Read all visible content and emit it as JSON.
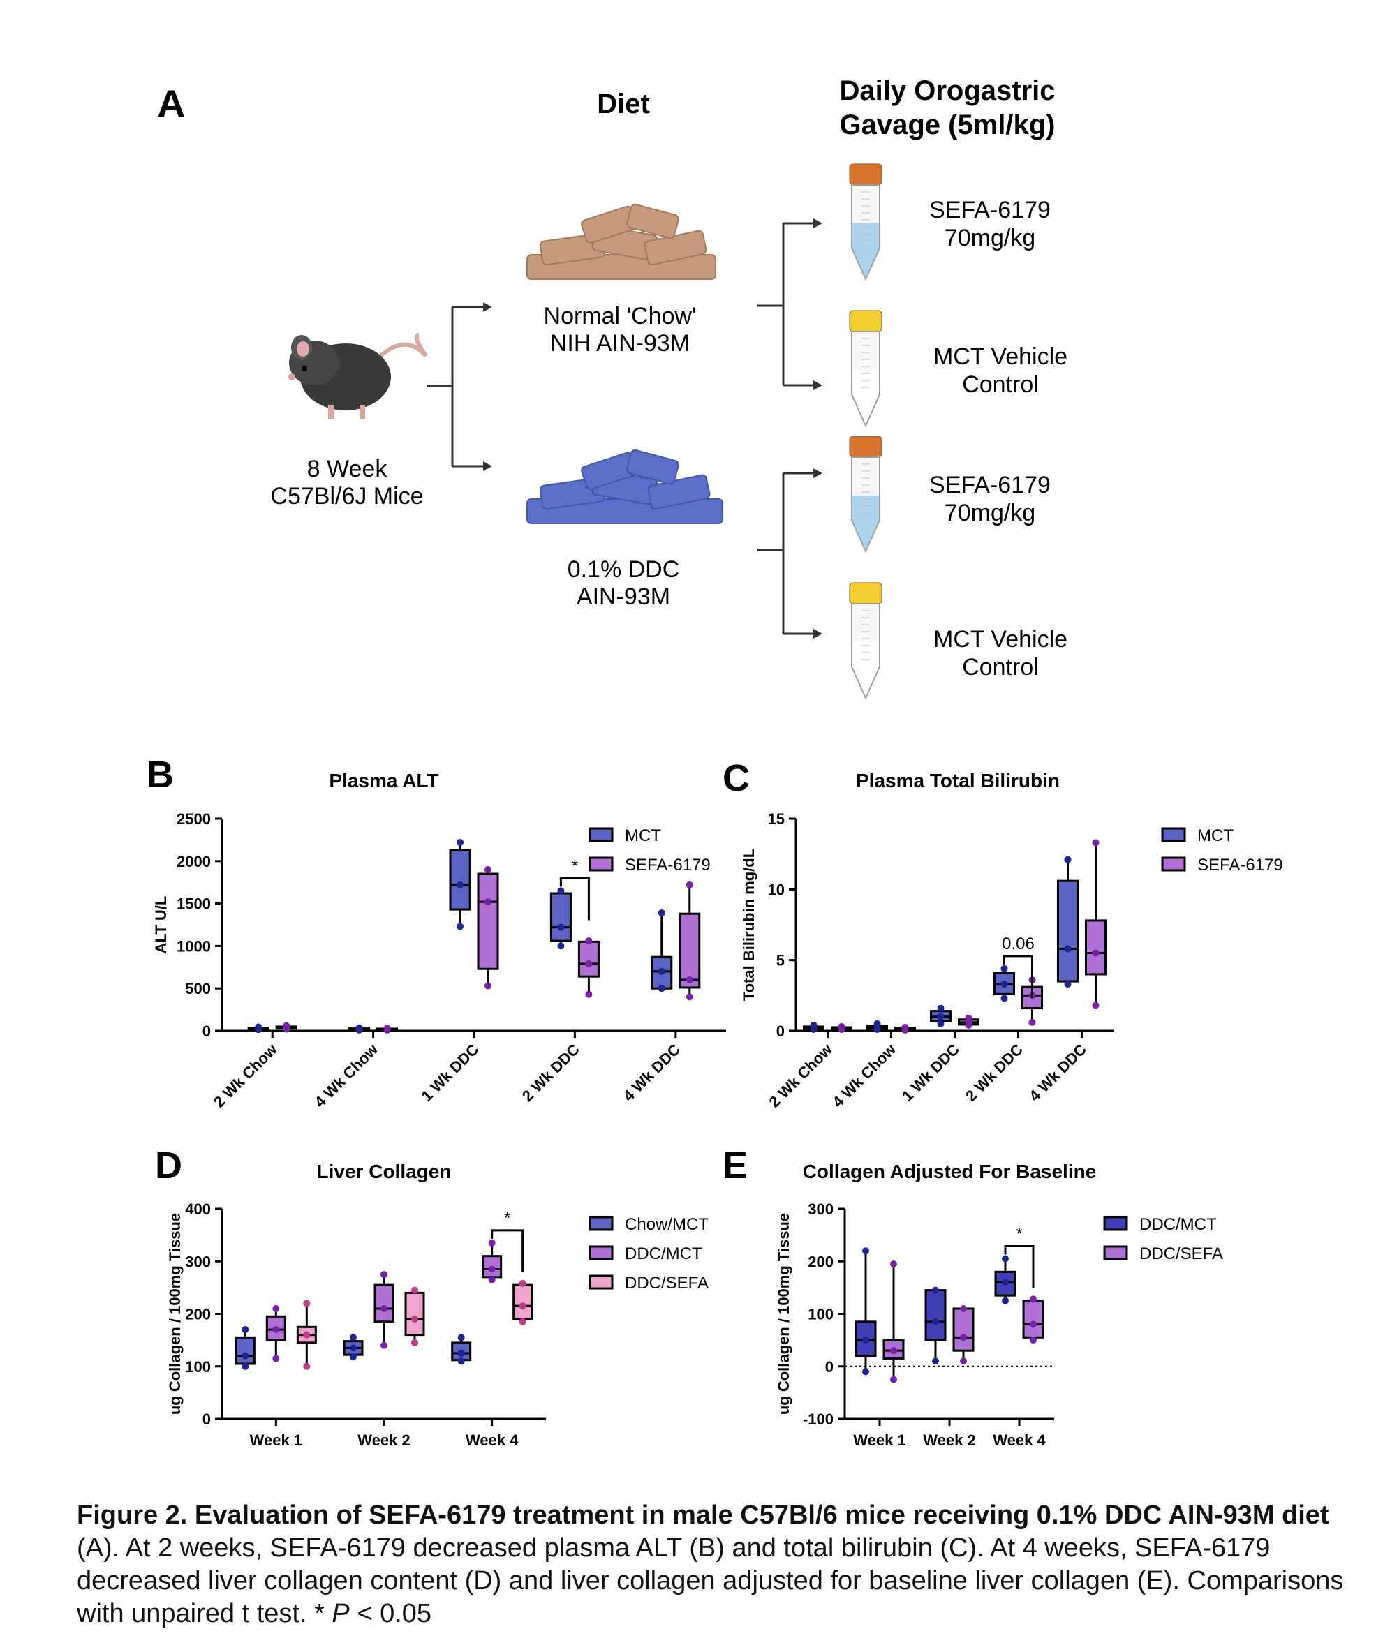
{
  "schematic": {
    "panel_label": "A",
    "diet_heading": "Diet",
    "gavage_heading_line1": "Daily Orogastric",
    "gavage_heading_line2": "Gavage (5ml/kg)",
    "mouse_line1": "8 Week",
    "mouse_line2": "C57Bl/6J Mice",
    "diet_chow_line1": "Normal 'Chow'",
    "diet_chow_line2": "NIH AIN-93M",
    "diet_ddc_line1": "0.1% DDC",
    "diet_ddc_line2": "AIN-93M",
    "treatments": [
      {
        "line1": "SEFA-6179",
        "line2": "70mg/kg",
        "cap_color": "#d9742f",
        "liquid": "#a9d3ee"
      },
      {
        "line1": "MCT Vehicle",
        "line2": "Control",
        "cap_color": "#f2cf2e",
        "liquid": "#ffffff"
      },
      {
        "line1": "SEFA-6179",
        "line2": "70mg/kg",
        "cap_color": "#d9742f",
        "liquid": "#a9d3ee"
      },
      {
        "line1": "MCT Vehicle",
        "line2": "Control",
        "cap_color": "#f2cf2e",
        "liquid": "#ffffff"
      }
    ],
    "colors": {
      "chow": "#c49a7a",
      "ddc": "#5a6fc7",
      "mouse": "#3a3a3a"
    }
  },
  "chart_data": [
    {
      "panel_label": "B",
      "type": "box",
      "title": "Plasma ALT",
      "ylabel": "ALT U/L",
      "ylim": [
        0,
        2500
      ],
      "yticks": [
        "0",
        "500",
        "1000",
        "1500",
        "2000",
        "2500"
      ],
      "categories": [
        "2 Wk Chow",
        "4 Wk Chow",
        "1 Wk DDC",
        "2 Wk DDC",
        "4 Wk DDC"
      ],
      "series": [
        {
          "name": "MCT",
          "color": "#5b63c4",
          "boxes": [
            {
              "min": 15,
              "q1": 20,
              "median": 28,
              "q3": 35,
              "max": 45
            },
            {
              "min": 10,
              "q1": 18,
              "median": 22,
              "q3": 28,
              "max": 35
            },
            {
              "min": 1230,
              "q1": 1430,
              "median": 1720,
              "q3": 2130,
              "max": 2220
            },
            {
              "min": 1000,
              "q1": 1060,
              "median": 1220,
              "q3": 1620,
              "max": 1650
            },
            {
              "min": 500,
              "q1": 500,
              "median": 700,
              "q3": 870,
              "max": 1390
            }
          ]
        },
        {
          "name": "SEFA-6179",
          "color": "#b070d6",
          "boxes": [
            {
              "min": 20,
              "q1": 28,
              "median": 40,
              "q3": 50,
              "max": 60
            },
            {
              "min": 10,
              "q1": 15,
              "median": 20,
              "q3": 25,
              "max": 30
            },
            {
              "min": 530,
              "q1": 730,
              "median": 1520,
              "q3": 1850,
              "max": 1900
            },
            {
              "min": 430,
              "q1": 640,
              "median": 790,
              "q3": 1050,
              "max": 1060
            },
            {
              "min": 400,
              "q1": 510,
              "median": 600,
              "q3": 1380,
              "max": 1720
            }
          ]
        }
      ],
      "annotations": [
        {
          "category": 3,
          "text": "*"
        }
      ]
    },
    {
      "panel_label": "C",
      "type": "box",
      "title": "Plasma Total Bilirubin",
      "ylabel": "Total Bilirubin mg/dL",
      "ylim": [
        0,
        15
      ],
      "yticks": [
        "0",
        "5",
        "10",
        "15"
      ],
      "categories": [
        "2 Wk Chow",
        "4 Wk Chow",
        "1 Wk DDC",
        "2 Wk DDC",
        "4 Wk DDC"
      ],
      "series": [
        {
          "name": "MCT",
          "color": "#5b63c4",
          "boxes": [
            {
              "min": 0.1,
              "q1": 0.15,
              "median": 0.2,
              "q3": 0.3,
              "max": 0.4
            },
            {
              "min": 0.1,
              "q1": 0.15,
              "median": 0.2,
              "q3": 0.35,
              "max": 0.5
            },
            {
              "min": 0.5,
              "q1": 0.7,
              "median": 1.0,
              "q3": 1.4,
              "max": 1.6
            },
            {
              "min": 2.3,
              "q1": 2.6,
              "median": 3.3,
              "q3": 4.1,
              "max": 4.4
            },
            {
              "min": 3.3,
              "q1": 3.5,
              "median": 5.8,
              "q3": 10.6,
              "max": 12.1
            }
          ]
        },
        {
          "name": "SEFA-6179",
          "color": "#b070d6",
          "boxes": [
            {
              "min": 0.1,
              "q1": 0.15,
              "median": 0.2,
              "q3": 0.25,
              "max": 0.3
            },
            {
              "min": 0.05,
              "q1": 0.1,
              "median": 0.15,
              "q3": 0.2,
              "max": 0.25
            },
            {
              "min": 0.4,
              "q1": 0.45,
              "median": 0.6,
              "q3": 0.8,
              "max": 0.9
            },
            {
              "min": 0.6,
              "q1": 1.6,
              "median": 2.5,
              "q3": 3.1,
              "max": 3.6
            },
            {
              "min": 1.8,
              "q1": 4.0,
              "median": 5.5,
              "q3": 7.8,
              "max": 13.3
            }
          ]
        }
      ],
      "annotations": [
        {
          "category": 3,
          "text": "0.06"
        }
      ]
    },
    {
      "panel_label": "D",
      "type": "box",
      "title": "Liver Collagen",
      "ylabel": "ug Collagen / 100mg Tissue",
      "ylim": [
        0,
        400
      ],
      "yticks": [
        "0",
        "100",
        "200",
        "300",
        "400"
      ],
      "categories": [
        "Week 1",
        "Week 2",
        "Week 4"
      ],
      "series": [
        {
          "name": "Chow/MCT",
          "color": "#5b63c4",
          "boxes": [
            {
              "min": 100,
              "q1": 105,
              "median": 120,
              "q3": 155,
              "max": 170
            },
            {
              "min": 118,
              "q1": 122,
              "median": 135,
              "q3": 148,
              "max": 155
            },
            {
              "min": 110,
              "q1": 112,
              "median": 125,
              "q3": 145,
              "max": 155
            }
          ]
        },
        {
          "name": "DDC/MCT",
          "color": "#b070d6",
          "boxes": [
            {
              "min": 115,
              "q1": 150,
              "median": 170,
              "q3": 195,
              "max": 210
            },
            {
              "min": 140,
              "q1": 185,
              "median": 210,
              "q3": 255,
              "max": 275
            },
            {
              "min": 265,
              "q1": 270,
              "median": 285,
              "q3": 310,
              "max": 335
            }
          ]
        },
        {
          "name": "DDC/SEFA",
          "color": "#f0a3cc",
          "boxes": [
            {
              "min": 100,
              "q1": 145,
              "median": 160,
              "q3": 175,
              "max": 220
            },
            {
              "min": 145,
              "q1": 160,
              "median": 190,
              "q3": 240,
              "max": 245
            },
            {
              "min": 185,
              "q1": 190,
              "median": 215,
              "q3": 255,
              "max": 258
            }
          ]
        }
      ],
      "annotations": [
        {
          "category": 2,
          "text": "*"
        }
      ]
    },
    {
      "panel_label": "E",
      "type": "box",
      "title": "Collagen Adjusted For Baseline",
      "ylabel": "ug Collagen / 100mg Tissue",
      "ylim": [
        -100,
        300
      ],
      "yticks": [
        "-100",
        "0",
        "100",
        "200",
        "300"
      ],
      "categories": [
        "Week 1",
        "Week 2",
        "Week 4"
      ],
      "series": [
        {
          "name": "DDC/MCT",
          "color": "#3f3fb8",
          "boxes": [
            {
              "min": -10,
              "q1": 20,
              "median": 50,
              "q3": 85,
              "max": 220
            },
            {
              "min": 10,
              "q1": 50,
              "median": 85,
              "q3": 145,
              "max": 145
            },
            {
              "min": 125,
              "q1": 135,
              "median": 160,
              "q3": 180,
              "max": 205
            }
          ]
        },
        {
          "name": "DDC/SEFA",
          "color": "#b070d6",
          "boxes": [
            {
              "min": -25,
              "q1": 15,
              "median": 30,
              "q3": 50,
              "max": 195
            },
            {
              "min": 10,
              "q1": 30,
              "median": 55,
              "q3": 110,
              "max": 110
            },
            {
              "min": 50,
              "q1": 55,
              "median": 80,
              "q3": 125,
              "max": 128
            }
          ]
        }
      ],
      "annotations": [
        {
          "category": 2,
          "text": "*"
        }
      ],
      "reference_line": 0
    }
  ],
  "caption": {
    "bold": "Figure 2. Evaluation of SEFA-6179 treatment in male C57Bl/6 mice receiving 0.1% DDC AIN-93M diet",
    "rest": " (A). At 2 weeks, SEFA-6179 decreased plasma ALT (B) and total bilirubin (C). At 4 weeks, SEFA-6179 decreased liver collagen content (D) and liver collagen adjusted for baseline liver collagen (E). Comparisons with unpaired t test. * ",
    "p_symbol": "P",
    "tail": " < 0.05"
  }
}
